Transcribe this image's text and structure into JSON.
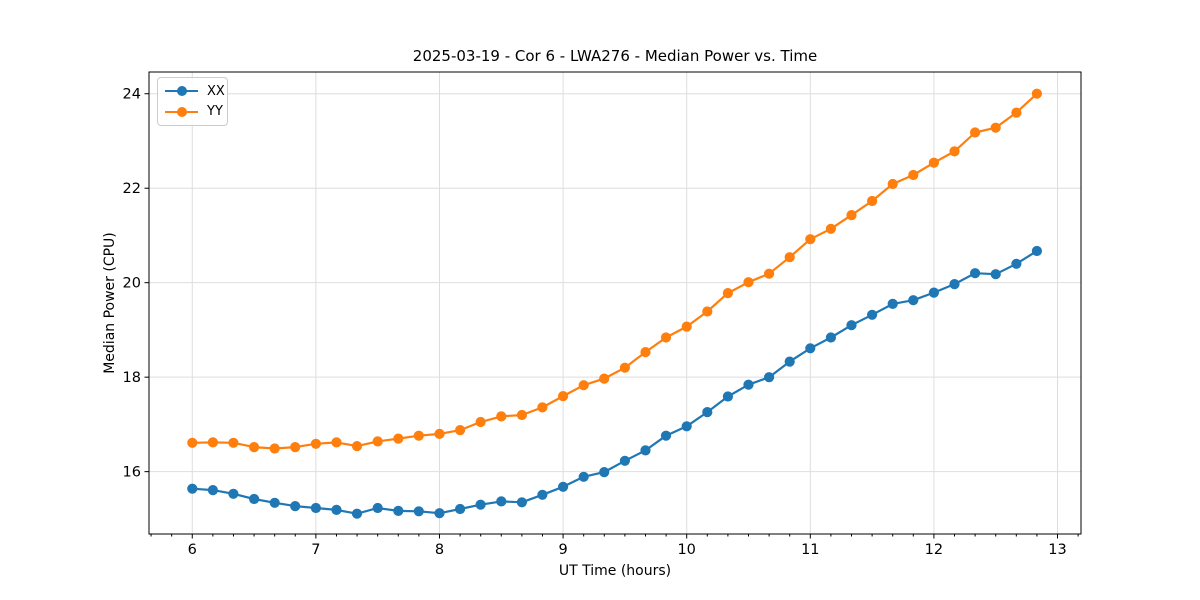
{
  "chart_data": {
    "type": "line",
    "title": "2025-03-19 - Cor 6 - LWA276 - Median Power vs. Time",
    "xlabel": "UT Time (hours)",
    "ylabel": "Median Power (CPU)",
    "xlim": [
      5.65,
      13.19
    ],
    "ylim": [
      14.68,
      24.46
    ],
    "x_ticks": [
      6,
      7,
      8,
      9,
      10,
      11,
      12,
      13
    ],
    "x_tick_labels": [
      "6",
      "7",
      "8",
      "9",
      "10",
      "11",
      "12",
      "13"
    ],
    "y_ticks": [
      16,
      18,
      20,
      22,
      24
    ],
    "y_tick_labels": [
      "16",
      "18",
      "20",
      "22",
      "24"
    ],
    "x_minor_step": 0.166667,
    "grid": true,
    "grid_color": "#dedede",
    "legend_position": "upper-left",
    "x": [
      6.0,
      6.167,
      6.333,
      6.5,
      6.667,
      6.833,
      7.0,
      7.167,
      7.333,
      7.5,
      7.667,
      7.833,
      8.0,
      8.167,
      8.333,
      8.5,
      8.667,
      8.833,
      9.0,
      9.167,
      9.333,
      9.5,
      9.667,
      9.833,
      10.0,
      10.167,
      10.333,
      10.5,
      10.667,
      10.833,
      11.0,
      11.167,
      11.333,
      11.5,
      11.667,
      11.833,
      12.0,
      12.167,
      12.333,
      12.5,
      12.667,
      12.833
    ],
    "series": [
      {
        "name": "XX",
        "color": "#1f77b4",
        "values": [
          15.64,
          15.61,
          15.53,
          15.42,
          15.34,
          15.27,
          15.23,
          15.19,
          15.11,
          15.23,
          15.17,
          15.16,
          15.12,
          15.21,
          15.3,
          15.37,
          15.35,
          15.51,
          15.68,
          15.89,
          15.99,
          16.23,
          16.45,
          16.76,
          16.96,
          17.26,
          17.59,
          17.84,
          18.0,
          18.33,
          18.61,
          18.84,
          19.1,
          19.32,
          19.55,
          19.63,
          19.79,
          19.97,
          20.2,
          20.18,
          20.4,
          20.67
        ]
      },
      {
        "name": "YY",
        "color": "#ff7f0e",
        "values": [
          16.61,
          16.62,
          16.61,
          16.52,
          16.49,
          16.52,
          16.59,
          16.62,
          16.54,
          16.64,
          16.7,
          16.76,
          16.8,
          16.88,
          17.05,
          17.17,
          17.2,
          17.36,
          17.6,
          17.83,
          17.97,
          18.2,
          18.53,
          18.84,
          19.07,
          19.39,
          19.78,
          20.01,
          20.19,
          20.54,
          20.92,
          21.14,
          21.43,
          21.73,
          22.09,
          22.28,
          22.54,
          22.78,
          23.18,
          23.28,
          23.6,
          24.0
        ]
      }
    ]
  }
}
